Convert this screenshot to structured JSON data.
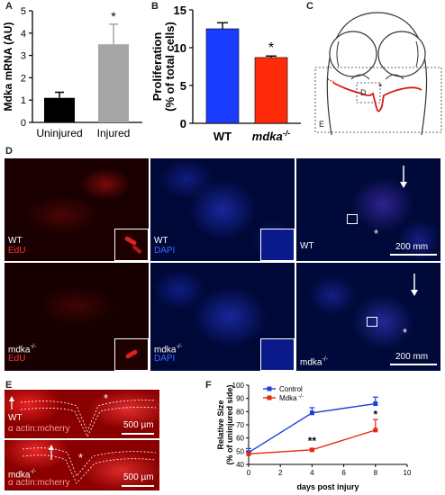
{
  "panels": {
    "a": "A",
    "b": "B",
    "c": "C",
    "d": "D",
    "e": "E",
    "f": "F"
  },
  "chart_data": [
    {
      "type": "bar",
      "panel": "A",
      "categories": [
        "Uninjured",
        "Injured"
      ],
      "values": [
        1.1,
        3.5
      ],
      "errors": [
        0.25,
        0.9
      ],
      "ylabel": "Mdka mRNA (AU)",
      "ylim": [
        0,
        5
      ],
      "yticks": [
        "0",
        "1",
        "2",
        "3",
        "4",
        "5"
      ],
      "annotations": [
        {
          "category": "Injured",
          "text": "*"
        }
      ],
      "colors": [
        "#000000",
        "#a6a6a6"
      ]
    },
    {
      "type": "bar",
      "panel": "B",
      "categories": [
        "WT",
        "mdka"
      ],
      "category_superscript": [
        "",
        "-/-"
      ],
      "values": [
        12.5,
        8.7
      ],
      "errors": [
        0.8,
        0.2
      ],
      "ylabel_line1": "Proliferation",
      "ylabel_line2": "(% of total cells)",
      "ylim": [
        0,
        15
      ],
      "yticks": [
        "0",
        "5",
        "10",
        "15"
      ],
      "annotations": [
        {
          "category": "mdka",
          "text": "*"
        }
      ],
      "colors": [
        "#1a3cff",
        "#ff2a0a"
      ]
    },
    {
      "type": "line",
      "panel": "F",
      "x": [
        0,
        4,
        8
      ],
      "series": [
        {
          "name": "Control",
          "values": [
            49,
            79,
            86
          ],
          "errors": [
            3,
            4,
            5
          ],
          "color": "#1f3fd8"
        },
        {
          "name": "Mdka",
          "name_superscript": "-/-",
          "values": [
            48,
            51,
            66
          ],
          "errors": [
            1,
            1,
            8
          ],
          "color": "#e02a10"
        }
      ],
      "xlabel": "days post injury",
      "ylabel_line1": "Relative Size",
      "ylabel_line2": "(% of uninjured side)",
      "xlim": [
        0,
        10
      ],
      "ylim": [
        40,
        100
      ],
      "xticks": [
        "0",
        "2",
        "4",
        "6",
        "8",
        "10"
      ],
      "yticks": [
        "40",
        "50",
        "60",
        "70",
        "80",
        "90",
        "100"
      ],
      "annotations": [
        {
          "x": 4,
          "y": 55,
          "text": "**"
        },
        {
          "x": 8,
          "y": 75,
          "text": "*"
        }
      ]
    }
  ],
  "diagram_c": {
    "label_e": "E",
    "label_d": "D",
    "star": "*"
  },
  "panel_d": {
    "row1": {
      "geno": "WT",
      "stain1": "EdU",
      "stain2": "DAPI",
      "scale": "200 mm"
    },
    "row2": {
      "geno": "mdka",
      "geno_sup": "-/-",
      "stain1": "EdU",
      "stain2": "DAPI",
      "scale": "200 mm"
    },
    "star": "*"
  },
  "panel_e": {
    "row1": {
      "geno": "WT",
      "marker": "α actin:mcherry",
      "scale": "500 µm"
    },
    "row2": {
      "geno": "mdka",
      "geno_sup": "-/-",
      "marker": "α actin:mcherry",
      "scale": "500 µm"
    },
    "star": "*"
  }
}
